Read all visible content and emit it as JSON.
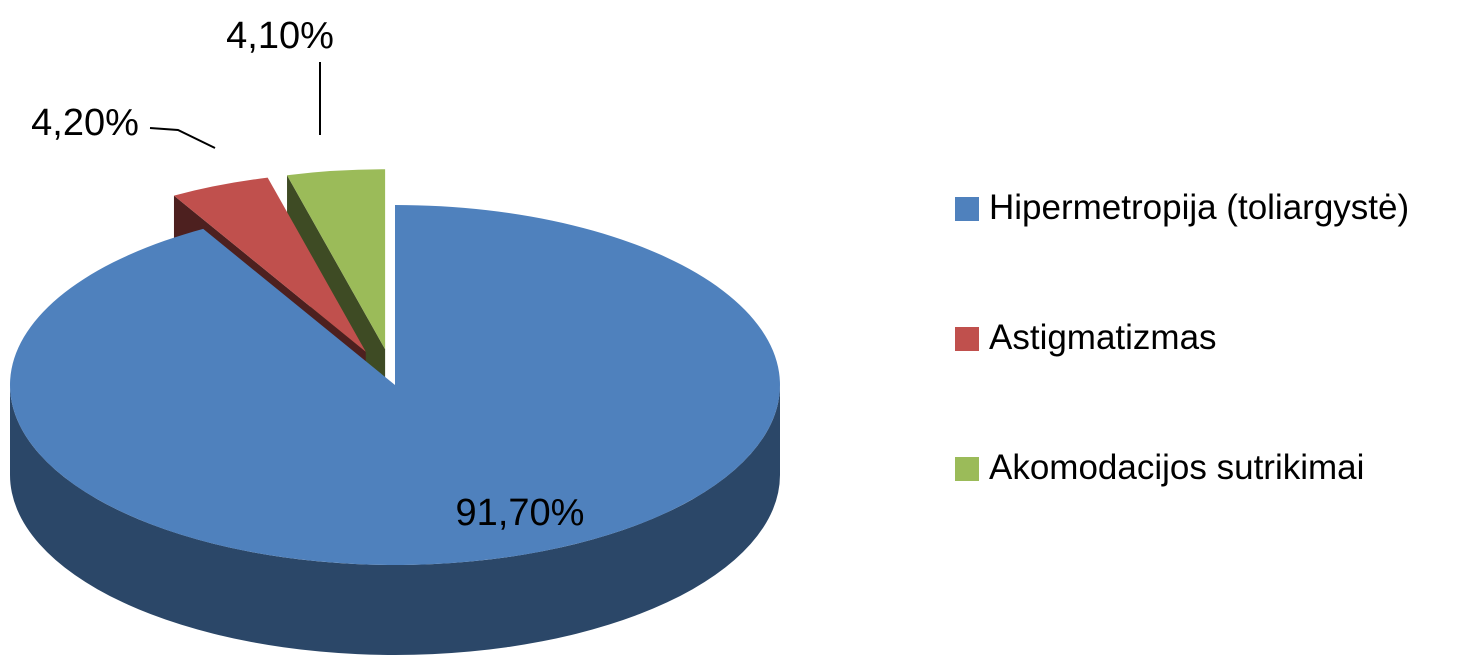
{
  "chart_data": {
    "type": "pie",
    "categories": [
      "Hipermetropija (toliargystė)",
      "Astigmatizmas",
      "Akomodacijos sutrikimai"
    ],
    "values": [
      91.7,
      4.2,
      4.1
    ],
    "value_labels": [
      "91,70%",
      "4,20%",
      "4,10%"
    ],
    "colors": [
      "#4f81bd",
      "#c0504d",
      "#9bbb59"
    ],
    "exploded": [
      false,
      true,
      true
    ],
    "legend": "right"
  }
}
